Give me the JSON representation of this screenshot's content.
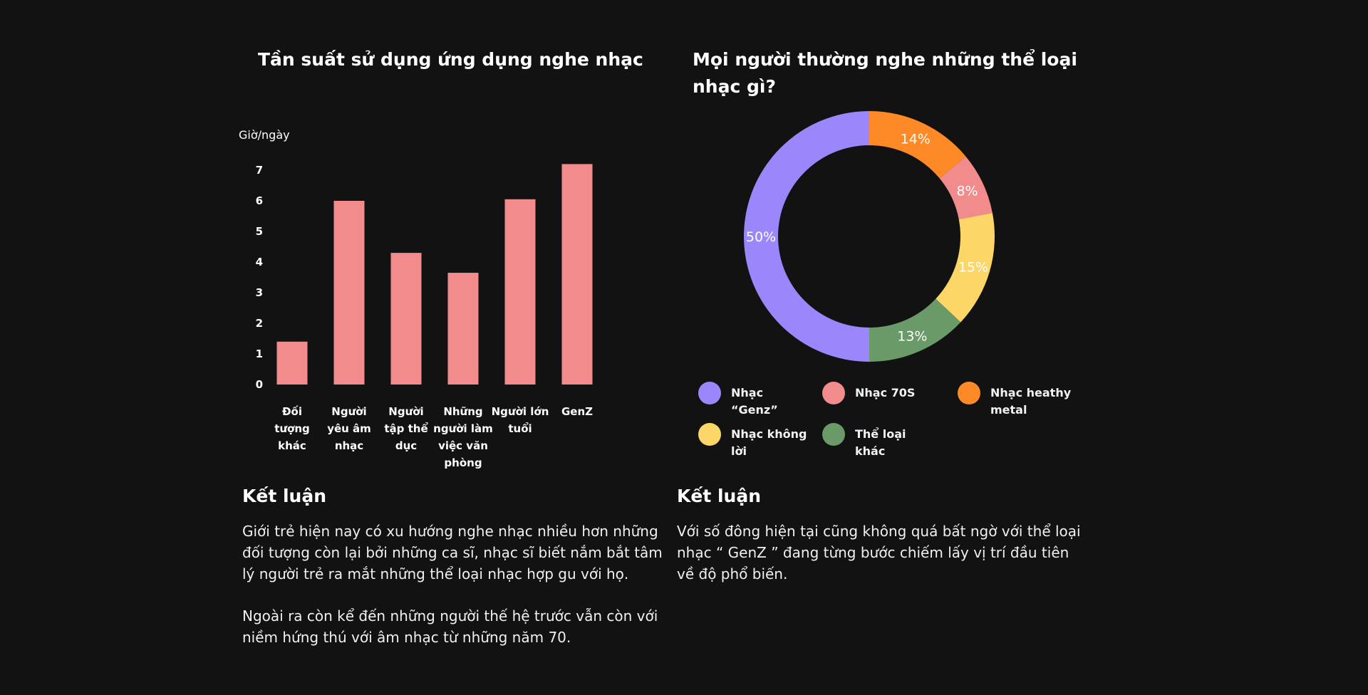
{
  "left_panel": {
    "title": "Tần suất sử dụng ứng dụng nghe nhạc",
    "conclusion_heading": "Kết luận",
    "conclusion_p1": "Giới trẻ hiện nay có xu hướng nghe nhạc nhiều hơn những đối tượng còn lại bởi những ca sĩ, nhạc sĩ biết nắm bắt tâm lý người trẻ ra mắt những thể loại nhạc hợp gu với họ.",
    "conclusion_p2": "Ngoài ra còn kể đến những người thế hệ trước vẫn còn với niềm hứng thú với âm nhạc từ những năm 70."
  },
  "right_panel": {
    "title": "Mọi người thường nghe những thể loại nhạc gì?",
    "conclusion_heading": "Kết luận",
    "conclusion_p1": "Với số đông hiện tại cũng không quá bất ngờ với thể loại nhạc “ GenZ ” đang từng bước chiếm lấy vị trí đầu tiên về độ phổ biến."
  },
  "chart_data": [
    {
      "type": "bar",
      "title": "Tần suất sử dụng ứng dụng nghe nhạc",
      "ylabel": "Giờ/ngày",
      "xlabel": "",
      "categories": [
        [
          "Đối",
          "tượng",
          "khác"
        ],
        [
          "Người",
          "yêu âm",
          "nhạc"
        ],
        [
          "Người",
          "tập thể",
          "dục"
        ],
        [
          "Những",
          "người làm",
          "việc văn",
          "phòng"
        ],
        [
          "Người lớn",
          "tuổi"
        ],
        [
          "GenZ"
        ]
      ],
      "values": [
        1.4,
        6.0,
        4.3,
        3.65,
        6.05,
        7.2
      ],
      "yticks": [
        0,
        1,
        2,
        3,
        4,
        5,
        6,
        7
      ],
      "ylim": [
        0,
        7.2
      ],
      "color": "#f28b8b",
      "grid": false
    },
    {
      "type": "pie",
      "title": "Mọi người thường nghe những thể loại nhạc gì?",
      "donut": true,
      "slices": [
        {
          "label": "Nhạc heathy metal",
          "value": 14,
          "display": "14%",
          "color": "#fd8a26"
        },
        {
          "label": "Nhạc 70S",
          "value": 8,
          "display": "8%",
          "color": "#f28b8b"
        },
        {
          "label": "Nhạc không lời",
          "value": 15,
          "display": "15%",
          "color": "#fcd667"
        },
        {
          "label": "Thể loại khác",
          "value": 13,
          "display": "13%",
          "color": "#6a9a67"
        },
        {
          "label": "Nhạc “Genz”",
          "value": 50,
          "display": "50%",
          "color": "#9b87fb"
        }
      ],
      "legend_order": [
        {
          "label": "Nhạc “Genz”",
          "color": "#9b87fb"
        },
        {
          "label": "Nhạc 70S",
          "color": "#f28b8b"
        },
        {
          "label": "Nhạc heathy metal",
          "color": "#fd8a26"
        },
        {
          "label": "Nhạc không lời",
          "color": "#fcd667"
        },
        {
          "label": "Thể loại khác",
          "color": "#6a9a67"
        }
      ],
      "legend_position": "bottom"
    }
  ]
}
